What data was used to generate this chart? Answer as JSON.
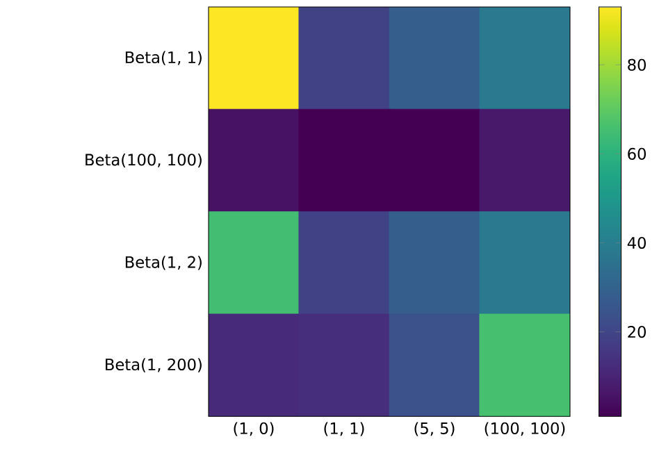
{
  "chart_data": {
    "type": "heatmap",
    "categories": [
      "(1, 0)",
      "(1, 1)",
      "(5, 5)",
      "(100, 100)"
    ],
    "y_categories": [
      "Beta(1, 1)",
      "Beta(100, 100)",
      "Beta(1, 2)",
      "Beta(1, 200)"
    ],
    "cells": [
      [
        93,
        19,
        28,
        38
      ],
      [
        5,
        1,
        1,
        7
      ],
      [
        65,
        19,
        28,
        38
      ],
      [
        12,
        13,
        24,
        66
      ]
    ],
    "clim": [
      1,
      93
    ],
    "cticks": [
      20,
      40,
      60,
      80
    ]
  }
}
